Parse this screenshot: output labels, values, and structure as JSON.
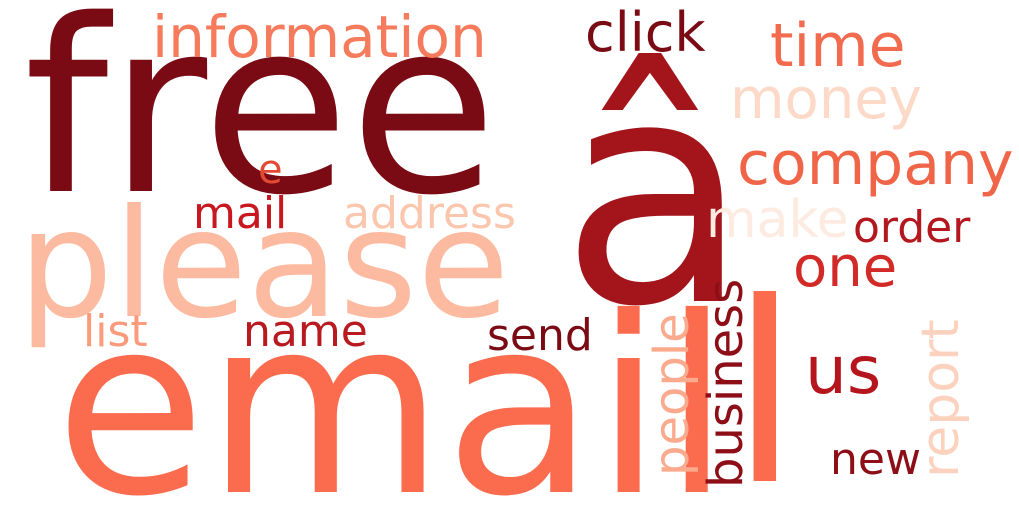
{
  "words": [
    {
      "text": "free",
      "color": "#7a0b14"
    },
    {
      "text": "â",
      "color": "#a3151b"
    },
    {
      "text": "information",
      "color": "#f57b5c"
    },
    {
      "text": "click",
      "color": "#7a0b14"
    },
    {
      "text": "time",
      "color": "#f36b4f"
    },
    {
      "text": "money",
      "color": "#fdd9c8"
    },
    {
      "text": "company",
      "color": "#f06448"
    },
    {
      "text": "e",
      "color": "#e34a34"
    },
    {
      "text": "mail",
      "color": "#c8171f"
    },
    {
      "text": "address",
      "color": "#fbc6ae"
    },
    {
      "text": "make",
      "color": "#fdeae0"
    },
    {
      "text": "order",
      "color": "#b4171d"
    },
    {
      "text": "please",
      "color": "#fcbba1"
    },
    {
      "text": "one",
      "color": "#d22b27"
    },
    {
      "text": "list",
      "color": "#fb9a7c"
    },
    {
      "text": "name",
      "color": "#b81a20"
    },
    {
      "text": "send",
      "color": "#7a0b14"
    },
    {
      "text": "people",
      "color": "#fcaa8d"
    },
    {
      "text": "business",
      "color": "#8e0e17"
    },
    {
      "text": "report",
      "color": "#fcd2bf"
    },
    {
      "text": "us",
      "color": "#b5151c"
    },
    {
      "text": "email",
      "color": "#fb6b4e"
    },
    {
      "text": "l",
      "color": "#fb6b4e"
    },
    {
      "text": "new",
      "color": "#8e0e17"
    }
  ]
}
